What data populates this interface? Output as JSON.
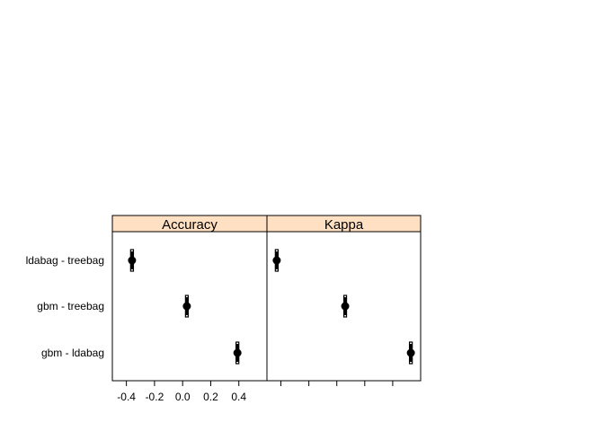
{
  "chart_data": {
    "type": "dotplot",
    "panel_bg": "#ffe0c2",
    "rows": [
      "ldabag - treebag",
      "gbm - treebag",
      "gbm - ldabag"
    ],
    "panels": [
      {
        "strip": "Accuracy",
        "xlim": [
          -0.5,
          0.6
        ],
        "ticks": [
          -0.4,
          -0.2,
          0.0,
          0.2,
          0.4
        ],
        "tick_labels": [
          "-0.4",
          "-0.2",
          "0.0",
          "0.2",
          "0.4"
        ],
        "points": [
          {
            "estimate": -0.36,
            "ci_low": -0.37,
            "ci_high": -0.35,
            "inner_low": -0.365,
            "inner_high": -0.355
          },
          {
            "estimate": 0.03,
            "ci_low": 0.025,
            "ci_high": 0.035,
            "inner_low": 0.03,
            "inner_high": 0.03
          },
          {
            "estimate": 0.39,
            "ci_low": 0.38,
            "ci_high": 0.4,
            "inner_low": 0.385,
            "inner_high": 0.395
          }
        ]
      },
      {
        "strip": "Kappa",
        "xlim": [
          -0.5,
          0.6
        ],
        "ticks": [
          -0.4,
          -0.2,
          0.0,
          0.2,
          0.4
        ],
        "tick_labels": [
          "",
          "",
          "",
          "",
          ""
        ],
        "points": [
          {
            "estimate": -0.43,
            "ci_low": -0.44,
            "ci_high": -0.42,
            "inner_low": -0.435,
            "inner_high": -0.425
          },
          {
            "estimate": 0.06,
            "ci_low": 0.055,
            "ci_high": 0.065,
            "inner_low": 0.06,
            "inner_high": 0.06
          },
          {
            "estimate": 0.53,
            "ci_low": 0.52,
            "ci_high": 0.54,
            "inner_low": 0.525,
            "inner_high": 0.535
          }
        ]
      }
    ]
  }
}
